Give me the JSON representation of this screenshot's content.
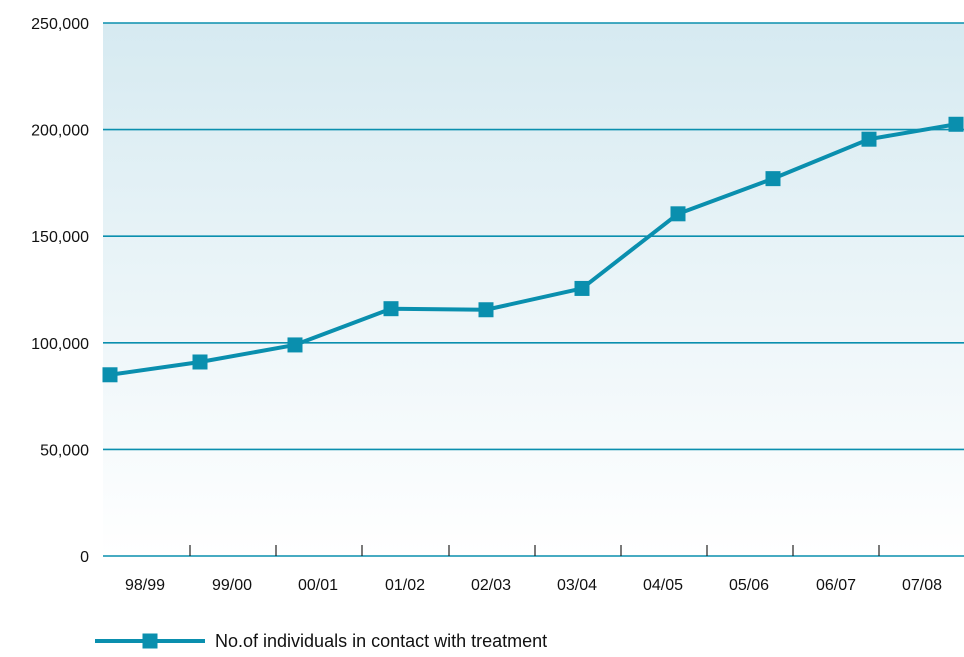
{
  "colors": {
    "series": "#0a8fae",
    "gridline": "#0a8fae",
    "plot_bg_top": "#d6eaf1",
    "plot_bg_bottom": "#ffffff",
    "text": "#111111"
  },
  "chart_data": {
    "type": "line",
    "title": "",
    "xlabel": "",
    "ylabel": "",
    "categories": [
      "98/99",
      "99/00",
      "00/01",
      "01/02",
      "02/03",
      "03/04",
      "04/05",
      "05/06",
      "06/07",
      "07/08"
    ],
    "x_tick_labels": [
      "98/99",
      "99/00",
      "00/01",
      "01/02",
      "02/03",
      "03/04",
      "04/05",
      "05/06",
      "06/07",
      "07/08"
    ],
    "y_ticks": [
      0,
      50000,
      100000,
      150000,
      200000,
      250000
    ],
    "y_tick_labels": [
      "0",
      "50,000",
      "100,000",
      "150,000",
      "200,000",
      "250,000"
    ],
    "ylim": [
      0,
      250000
    ],
    "grid": true,
    "legend_position": "bottom-left",
    "series": [
      {
        "name": "No.of individuals in contact with treatment",
        "marker": "square",
        "values": [
          85000,
          91000,
          99000,
          116000,
          115500,
          125500,
          160500,
          177000,
          195500,
          202500
        ]
      }
    ]
  }
}
